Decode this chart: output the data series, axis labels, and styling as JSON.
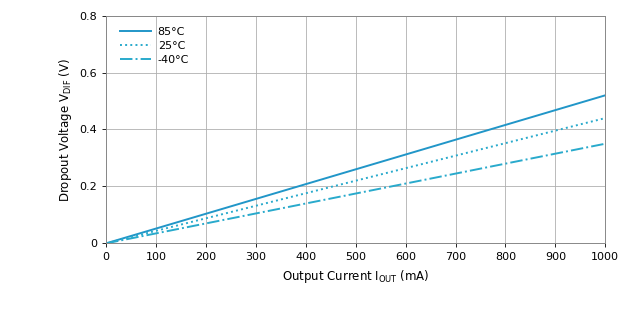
{
  "xlim": [
    0,
    1000
  ],
  "ylim": [
    0,
    0.8
  ],
  "xticks": [
    0,
    100,
    200,
    300,
    400,
    500,
    600,
    700,
    800,
    900,
    1000
  ],
  "yticks": [
    0.0,
    0.2,
    0.4,
    0.6,
    0.8
  ],
  "ytick_labels": [
    "0",
    "0.2",
    "0.4",
    "0.6",
    "0.8"
  ],
  "series": [
    {
      "label": "85°C",
      "slope": 0.00052,
      "linestyle": "solid",
      "color": "#2196c8",
      "linewidth": 1.4
    },
    {
      "label": "25°C",
      "slope": 0.00044,
      "linestyle": "dotted",
      "color": "#29aacc",
      "linewidth": 1.4
    },
    {
      "label": "-40°C",
      "slope": 0.00035,
      "linestyle": "dashdot",
      "color": "#29aacc",
      "linewidth": 1.4
    }
  ],
  "grid_color": "#b0b0b0",
  "grid_linewidth": 0.6,
  "background_color": "#ffffff",
  "figure_size": [
    6.24,
    3.12
  ],
  "dpi": 100
}
